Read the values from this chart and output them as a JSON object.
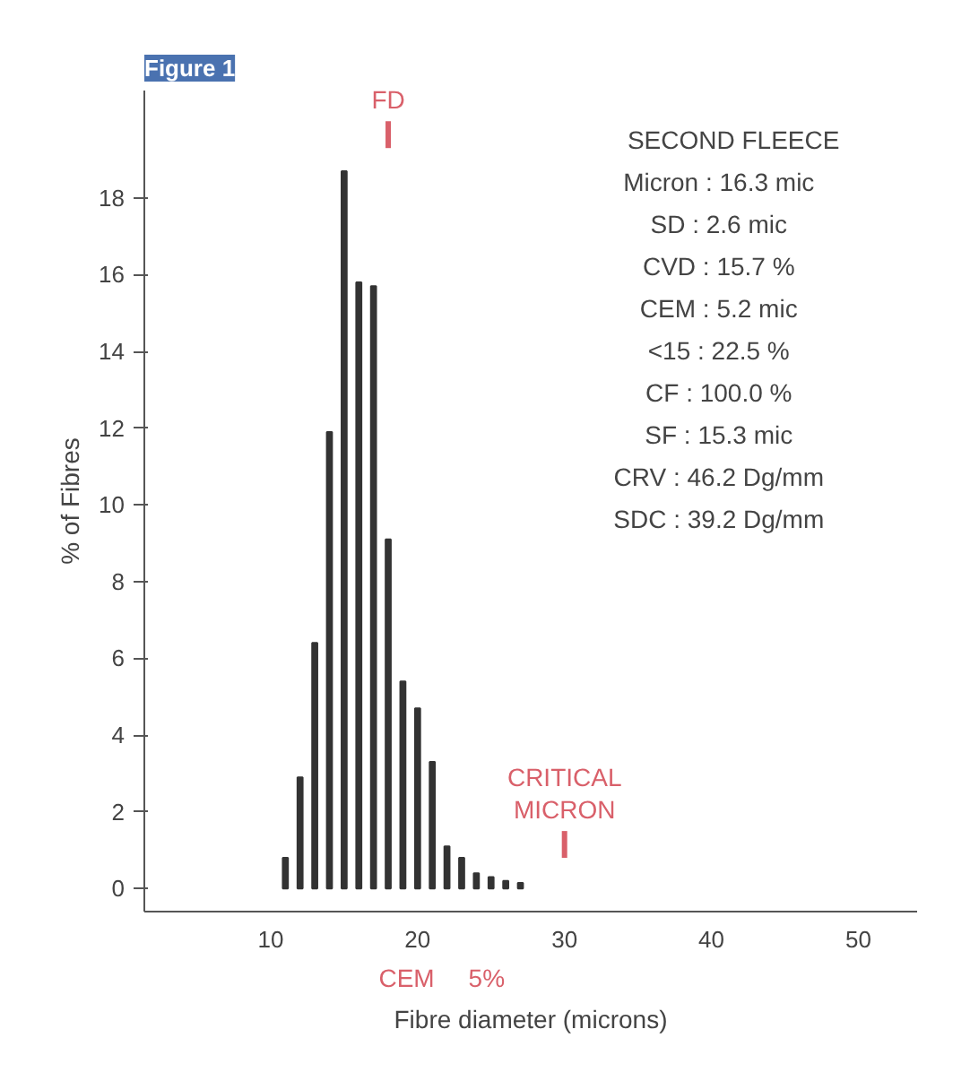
{
  "chart_data": {
    "type": "bar",
    "title": "Figure 1",
    "x": [
      11,
      12,
      13,
      14,
      15,
      16,
      17,
      18,
      19,
      20,
      21,
      22,
      23,
      24,
      25,
      26,
      27
    ],
    "values": [
      0.8,
      2.9,
      6.4,
      11.9,
      18.7,
      15.8,
      15.7,
      9.1,
      5.4,
      4.7,
      3.3,
      1.1,
      0.8,
      0.4,
      0.3,
      0.2,
      0.15
    ],
    "color": "#333333",
    "xlabel": "Fibre diameter (microns)",
    "ylabel": "% of Fibres",
    "xlim": [
      1.4,
      54
    ],
    "ylim": [
      -0.6,
      20.8
    ],
    "xticks": [
      10,
      20,
      30,
      40,
      50
    ],
    "yticks": [
      0,
      2,
      4,
      6,
      8,
      10,
      12,
      14,
      16,
      18
    ],
    "grid": false,
    "annotations": [
      "FD",
      "CRITICAL\nMICRON",
      "CEM",
      "5%",
      "SECOND FLEECE",
      "Micron : 16.3 mic",
      "SD : 2.6 mic",
      "CVD : 15.7 %",
      "CEM : 5.2 mic",
      "<15 : 22.5 %",
      "CF : 100.0 %",
      "SF : 15.3 mic",
      "CRV : 46.2 Dg/mm",
      "SDC : 39.2 Dg/mm"
    ]
  }
}
